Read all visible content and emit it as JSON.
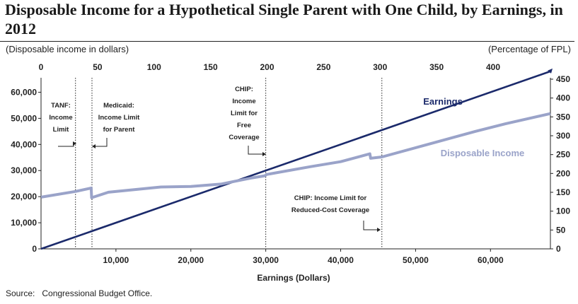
{
  "title": "Disposable Income for a Hypothetical Single Parent with One Child, by Earnings, in 2012",
  "left_unit": "(Disposable income in dollars)",
  "right_unit": "(Percentage of FPL)",
  "source_label": "Source:",
  "source_text": "Congressional Budget Office.",
  "colors": {
    "earnings": "#1b2a6b",
    "disposable": "#9aa3c9",
    "text": "#1a1a1a"
  },
  "chart_data": {
    "type": "line",
    "xlabel": "Earnings (Dollars)",
    "xlim": [
      0,
      68000
    ],
    "ylim": [
      0,
      65000
    ],
    "x_ticks": [
      10000,
      20000,
      30000,
      40000,
      50000,
      60000
    ],
    "x_tick_labels": [
      "10,000",
      "20,000",
      "30,000",
      "40,000",
      "50,000",
      "60,000"
    ],
    "y_ticks": [
      0,
      10000,
      20000,
      30000,
      40000,
      50000,
      60000
    ],
    "y_tick_labels": [
      "0",
      "10,000",
      "20,000",
      "30,000",
      "40,000",
      "50,000",
      "60,000"
    ],
    "top_axis": {
      "ticks": [
        0,
        50,
        100,
        150,
        200,
        250,
        300,
        350,
        400
      ],
      "labels": [
        "0",
        "50",
        "100",
        "150",
        "200",
        "250",
        "300",
        "350",
        "400"
      ]
    },
    "right_axis": {
      "range": [
        0,
        450
      ],
      "ticks": [
        0,
        50,
        100,
        150,
        200,
        250,
        300,
        350,
        400,
        450
      ],
      "labels": [
        "0",
        "50",
        "100",
        "150",
        "200",
        "250",
        "300",
        "350",
        "400",
        "450"
      ]
    },
    "series": [
      {
        "name": "Earnings",
        "points": [
          [
            0,
            0
          ],
          [
            68000,
            68000
          ]
        ]
      },
      {
        "name": "Disposable Income",
        "points": [
          [
            0,
            19800
          ],
          [
            4600,
            22000
          ],
          [
            6700,
            23300
          ],
          [
            6750,
            19600
          ],
          [
            9000,
            21700
          ],
          [
            16000,
            23700
          ],
          [
            20000,
            23900
          ],
          [
            24000,
            24800
          ],
          [
            28000,
            27100
          ],
          [
            29900,
            28000
          ],
          [
            30100,
            28500
          ],
          [
            36000,
            31500
          ],
          [
            40000,
            33400
          ],
          [
            43900,
            36400
          ],
          [
            44000,
            34700
          ],
          [
            45500,
            35200
          ],
          [
            52000,
            40300
          ],
          [
            58000,
            45000
          ],
          [
            62000,
            47900
          ],
          [
            68000,
            51800
          ]
        ]
      }
    ],
    "vlines": [
      {
        "x": 4600,
        "label": [
          "TANF:",
          "Income",
          "Limit"
        ]
      },
      {
        "x": 6800,
        "label": [
          "Medicaid:",
          "Income Limit",
          "for Parent"
        ]
      },
      {
        "x": 30000,
        "label": [
          "CHIP:",
          "Income",
          "Limit for",
          "Free",
          "Coverage"
        ]
      },
      {
        "x": 45500,
        "label": [
          "CHIP: Income Limit for",
          "Reduced-Cost Coverage"
        ]
      }
    ],
    "grid": false,
    "legend": "inline labels"
  }
}
